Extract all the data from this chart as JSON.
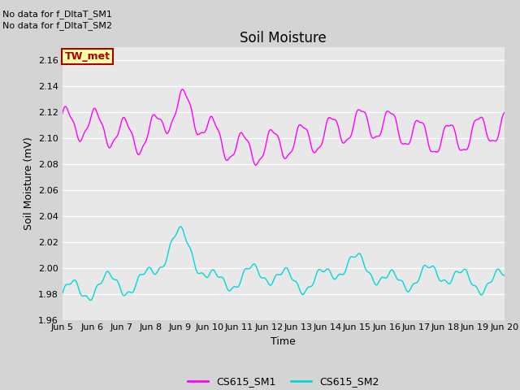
{
  "title": "Soil Moisture",
  "xlabel": "Time",
  "ylabel": "Soil Moisture (mV)",
  "ylim": [
    1.96,
    2.17
  ],
  "fig_bg_color": "#d4d4d4",
  "plot_bg_color": "#e8e8e8",
  "line1_color": "#ff00ff",
  "line2_color": "#00d8d8",
  "text_annotations": [
    "No data for f_DltaT_SM1",
    "No data for f_DltaT_SM2"
  ],
  "box_label": "TW_met",
  "box_face_color": "#ffffaa",
  "box_edge_color": "#aa0000",
  "box_text_color": "#aa0000",
  "xtick_labels": [
    "Jun 5",
    "Jun 6",
    "Jun 7",
    "Jun 8",
    "Jun 9",
    "Jun 10",
    "Jun 11",
    "Jun 12",
    "Jun 13",
    "Jun 14",
    "Jun 15",
    "Jun 16",
    "Jun 17",
    "Jun 18",
    "Jun 19",
    "Jun 20"
  ],
  "legend_labels": [
    "CS615_SM1",
    "CS615_SM2"
  ],
  "grid_color": "#ffffff",
  "title_fontsize": 12,
  "label_fontsize": 9,
  "tick_fontsize": 8,
  "annot_fontsize": 8
}
